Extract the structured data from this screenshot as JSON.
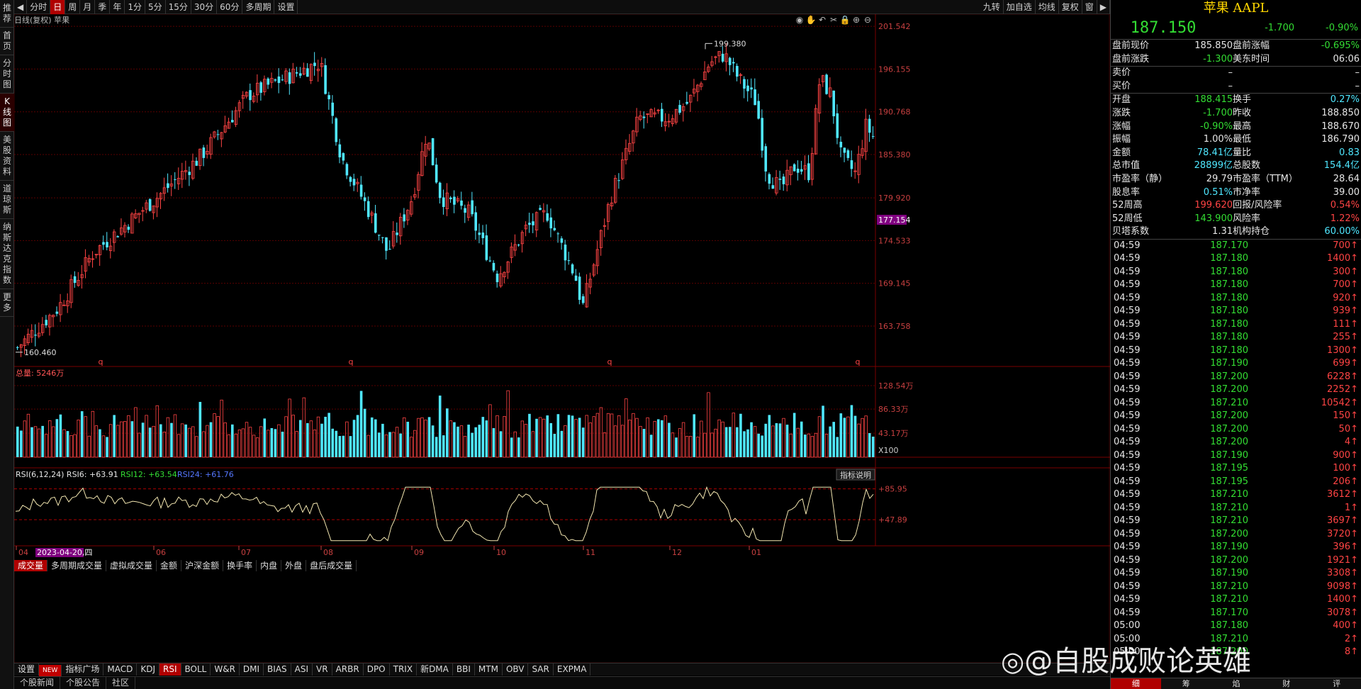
{
  "top_toolbar": {
    "left": [
      "分时",
      "日",
      "周",
      "月",
      "季",
      "年",
      "1分",
      "5分",
      "15分",
      "30分",
      "60分",
      "多周期",
      "设置"
    ],
    "active": "日",
    "right": [
      "九转",
      "加自选",
      "均线",
      "复权",
      "窗"
    ]
  },
  "side_nav": {
    "items": [
      "推荐",
      "首页",
      "分时图",
      "K线图",
      "美股资料",
      "道琼斯",
      "纳斯达克指数",
      "更多"
    ],
    "active": "K线图"
  },
  "chart": {
    "header": "日线(复权) 苹果",
    "y_ticks": [
      "201.542",
      "196.155",
      "190.768",
      "185.380",
      "179.920",
      "177.154",
      "174.533",
      "169.145",
      "163.758"
    ],
    "highlight_price": "177.154",
    "high_annotation": "199.380",
    "low_annotation": "160.460",
    "q_marks": [
      "q",
      "q",
      "q",
      "q"
    ]
  },
  "volume": {
    "header": "总量: 5246万",
    "y_ticks": [
      "128.54万",
      "86.33万",
      "43.17万"
    ],
    "unit": "X100"
  },
  "volume_tabs": [
    "成交量",
    "多周期成交量",
    "虚拟成交量",
    "金额",
    "沪深金额",
    "换手率",
    "内盘",
    "外盘",
    "盘后成交量"
  ],
  "rsi": {
    "header_main": "RSI(6,12,24) RSI6: +63.91",
    "rsi12": "RSI12: +63.54",
    "rsi24": "RSI24: +61.76",
    "y_ticks": [
      "+85.95",
      "+47.89"
    ],
    "explain_button": "指标说明"
  },
  "x_axis": {
    "labels": [
      "04",
      "2023-04-20,四",
      "06",
      "07",
      "08",
      "09",
      "10",
      "11",
      "12",
      "01"
    ]
  },
  "indicator_tabs": {
    "items": [
      "设置",
      "NEW",
      "指标广场",
      "MACD",
      "KDJ",
      "RSI",
      "BOLL",
      "W&R",
      "DMI",
      "BIAS",
      "ASI",
      "VR",
      "ARBR",
      "DPO",
      "TRIX",
      "新DMA",
      "BBI",
      "MTM",
      "OBV",
      "SAR",
      "EXPMA"
    ],
    "active": "RSI"
  },
  "status_bar": [
    "个股新闻",
    "个股公告",
    "社区"
  ],
  "quote": {
    "name": "苹果 AAPL",
    "price": "187.150",
    "change": "-1.700",
    "pct": "-0.90%",
    "rows": [
      [
        "盘前现价",
        "185.850",
        "盘前涨幅",
        "-0.695%"
      ],
      [
        "盘前涨跌",
        "-1.300",
        "美东时间",
        "06:06"
      ]
    ],
    "ask": [
      "卖价",
      "–",
      "–"
    ],
    "bid": [
      "买价",
      "–",
      "–"
    ],
    "stats": [
      [
        "开盘",
        "188.415",
        "换手",
        "0.27%"
      ],
      [
        "涨跌",
        "-1.700",
        "昨收",
        "188.850"
      ],
      [
        "涨幅",
        "-0.90%",
        "最高",
        "188.670"
      ],
      [
        "振幅",
        "1.00%",
        "最低",
        "186.790"
      ],
      [
        "金额",
        "78.41亿",
        "量比",
        "0.83"
      ],
      [
        "总市值",
        "28899亿",
        "总股数",
        "154.4亿"
      ],
      [
        "市盈率（静）",
        "29.79",
        "市盈率（TTM）",
        "28.64"
      ],
      [
        "股息率",
        "0.51%",
        "市净率",
        "39.00"
      ],
      [
        "52周高",
        "199.620",
        "回报/风险率",
        "0.54%"
      ],
      [
        "52周低",
        "143.900",
        "风险率",
        "1.22%"
      ],
      [
        "贝塔系数",
        "1.31",
        "机构持仓",
        "60.00%"
      ]
    ]
  },
  "ticks": [
    [
      "04:59",
      "187.170",
      "700"
    ],
    [
      "04:59",
      "187.180",
      "1400"
    ],
    [
      "04:59",
      "187.180",
      "300"
    ],
    [
      "04:59",
      "187.180",
      "700"
    ],
    [
      "04:59",
      "187.180",
      "920"
    ],
    [
      "04:59",
      "187.180",
      "939"
    ],
    [
      "04:59",
      "187.180",
      "111"
    ],
    [
      "04:59",
      "187.180",
      "255"
    ],
    [
      "04:59",
      "187.180",
      "1300"
    ],
    [
      "04:59",
      "187.190",
      "699"
    ],
    [
      "04:59",
      "187.200",
      "6228"
    ],
    [
      "04:59",
      "187.200",
      "2252"
    ],
    [
      "04:59",
      "187.210",
      "10542"
    ],
    [
      "04:59",
      "187.200",
      "150"
    ],
    [
      "04:59",
      "187.200",
      "50"
    ],
    [
      "04:59",
      "187.200",
      "4"
    ],
    [
      "04:59",
      "187.190",
      "900"
    ],
    [
      "04:59",
      "187.195",
      "100"
    ],
    [
      "04:59",
      "187.195",
      "206"
    ],
    [
      "04:59",
      "187.210",
      "3612"
    ],
    [
      "04:59",
      "187.210",
      "1"
    ],
    [
      "04:59",
      "187.210",
      "3697"
    ],
    [
      "04:59",
      "187.200",
      "3720"
    ],
    [
      "04:59",
      "187.190",
      "396"
    ],
    [
      "04:59",
      "187.200",
      "1921"
    ],
    [
      "04:59",
      "187.190",
      "3308"
    ],
    [
      "04:59",
      "187.210",
      "9098"
    ],
    [
      "04:59",
      "187.210",
      "1400"
    ],
    [
      "04:59",
      "187.170",
      "3078"
    ],
    [
      "05:00",
      "187.180",
      "400"
    ],
    [
      "05:00",
      "187.210",
      "2"
    ],
    [
      "05:00",
      "187.200",
      "8"
    ]
  ],
  "bottom_tabs": [
    "细",
    "筹",
    "焰",
    "财",
    "评"
  ],
  "watermark": "@自股成败论英雄",
  "colors": {
    "up": "#ff4444",
    "down": "#4fe7ff",
    "bg": "#000000",
    "grid": "#5a0000",
    "accent": "#b00000"
  }
}
